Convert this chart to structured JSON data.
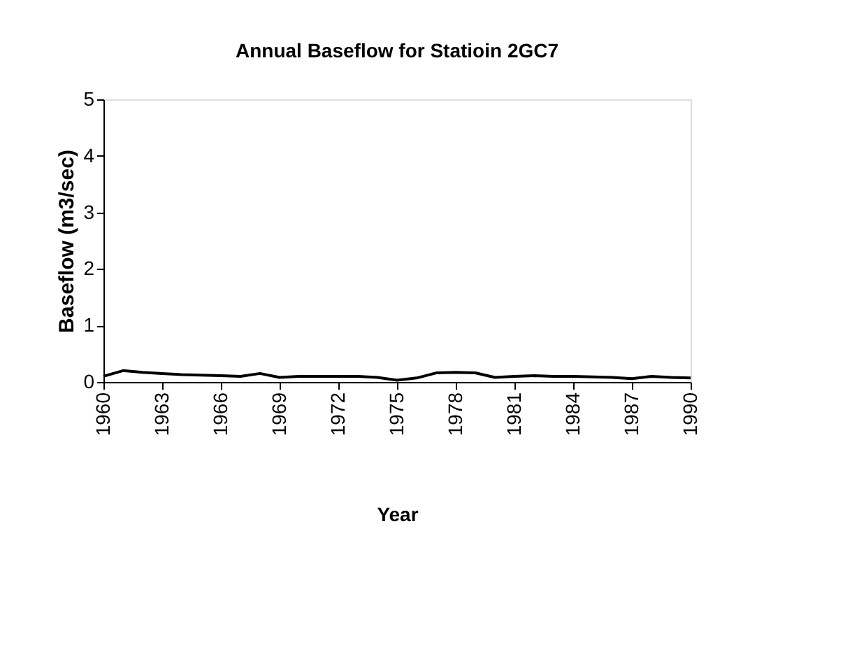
{
  "chart_data": {
    "type": "line",
    "title": "Annual Baseflow for Statioin 2GC7",
    "xlabel": "Year",
    "ylabel": "Baseflow (m3/sec)",
    "x": [
      1960,
      1961,
      1962,
      1963,
      1964,
      1965,
      1966,
      1967,
      1968,
      1969,
      1970,
      1971,
      1972,
      1973,
      1974,
      1975,
      1976,
      1977,
      1978,
      1979,
      1980,
      1981,
      1982,
      1983,
      1984,
      1985,
      1986,
      1987,
      1988,
      1989,
      1990
    ],
    "series": [
      {
        "color": "#000000",
        "values": [
          0.1,
          0.2,
          0.17,
          0.15,
          0.13,
          0.12,
          0.11,
          0.1,
          0.15,
          0.08,
          0.1,
          0.1,
          0.1,
          0.1,
          0.08,
          0.03,
          0.07,
          0.16,
          0.17,
          0.16,
          0.08,
          0.1,
          0.11,
          0.1,
          0.1,
          0.09,
          0.08,
          0.06,
          0.1,
          0.08,
          0.07
        ]
      }
    ],
    "xlim": [
      1960,
      1990
    ],
    "xticks": [
      1960,
      1963,
      1966,
      1969,
      1972,
      1975,
      1978,
      1981,
      1984,
      1987,
      1990
    ],
    "ylim": [
      0,
      5
    ],
    "yticks": [
      0,
      1,
      2,
      3,
      4,
      5
    ],
    "grid": false,
    "legend": false,
    "marker": "none",
    "line_style": "solid"
  }
}
